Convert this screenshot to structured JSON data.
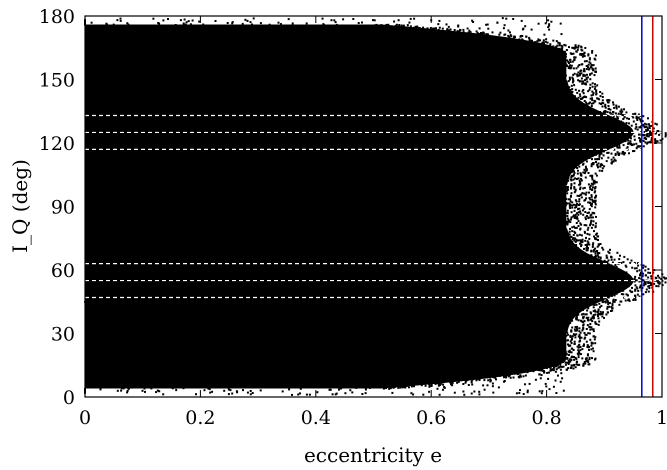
{
  "chart_data": {
    "type": "scatter",
    "title": "",
    "xlabel": "eccentricity e",
    "ylabel": "I_Q (deg)",
    "xlim": [
      0,
      1
    ],
    "ylim": [
      0,
      180
    ],
    "xticks": [
      0,
      0.2,
      0.4,
      0.6,
      0.8,
      1
    ],
    "xtick_labels": [
      "0",
      "0.2",
      "0.4",
      "0.6",
      "0.8",
      "1"
    ],
    "yticks": [
      0,
      30,
      60,
      90,
      120,
      150,
      180
    ],
    "ytick_labels": [
      "0",
      "30",
      "60",
      "90",
      "120",
      "150",
      "180"
    ],
    "grid": false,
    "legend": "none",
    "point_color": "#000000",
    "dense_region": {
      "description_of_distribution": "points fill 0 < e < ~0.86 for 10-170 deg; boundary narrows toward e ~0.98 at I = 55 and 125 deg",
      "e_max_at_90deg": 0.86,
      "e_max_at_55deg": 0.975,
      "e_max_at_125deg": 0.985
    },
    "horizontal_dashed_lines_deg": [
      47,
      55,
      63,
      117,
      125,
      133
    ],
    "horizontal_line_color": "#ffffff",
    "vertical_lines": [
      {
        "x": 0.965,
        "color": "#0000cc"
      },
      {
        "x": 0.984,
        "color": "#cc0000"
      }
    ]
  }
}
